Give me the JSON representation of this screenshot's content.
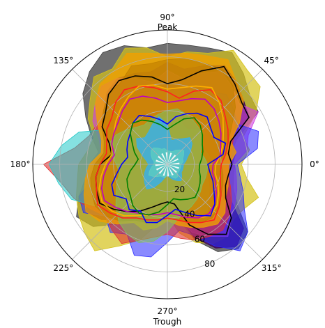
{
  "chart_data": {
    "type": "polar-area",
    "angle_unit": "degrees",
    "angle_ticks": [
      {
        "deg": 0,
        "label": "0°"
      },
      {
        "deg": 45,
        "label": "45°"
      },
      {
        "deg": 90,
        "label": "90°"
      },
      {
        "deg": 135,
        "label": "135°"
      },
      {
        "deg": 180,
        "label": "180°"
      },
      {
        "deg": 225,
        "label": "225°"
      },
      {
        "deg": 270,
        "label": "270°"
      },
      {
        "deg": 315,
        "label": "315°"
      }
    ],
    "angle_annotations": [
      {
        "deg": 90,
        "label": "Peak"
      },
      {
        "deg": 270,
        "label": "Trough"
      }
    ],
    "r_ticks": [
      20,
      40,
      60,
      80
    ],
    "r_tick_label_angle_deg": 292,
    "rlim": [
      0,
      100
    ],
    "grid": true,
    "angles_deg": [
      0,
      10,
      20,
      30,
      40,
      50,
      60,
      70,
      80,
      90,
      100,
      110,
      120,
      130,
      140,
      150,
      160,
      170,
      180,
      190,
      200,
      210,
      220,
      230,
      240,
      250,
      260,
      270,
      280,
      290,
      300,
      310,
      320,
      330,
      340,
      350
    ],
    "filled_series": [
      {
        "color": "#404040",
        "alpha": 0.75,
        "r": [
          50,
          48,
          55,
          78,
          80,
          88,
          96,
          92,
          90,
          90,
          88,
          94,
          96,
          90,
          82,
          70,
          60,
          52,
          58,
          62,
          70,
          78,
          72,
          58,
          44,
          40,
          36,
          38,
          40,
          60,
          75,
          82,
          78,
          60,
          52,
          50
        ]
      },
      {
        "color": "#d4c21a",
        "alpha": 0.7,
        "r": [
          55,
          62,
          60,
          76,
          90,
          92,
          98,
          88,
          85,
          80,
          88,
          92,
          82,
          85,
          75,
          68,
          58,
          60,
          66,
          68,
          72,
          76,
          80,
          84,
          70,
          60,
          46,
          38,
          52,
          62,
          68,
          70,
          64,
          66,
          72,
          60
        ]
      },
      {
        "color": "#3a0060",
        "alpha": 0.8,
        "r": [
          48,
          52,
          50,
          70,
          74,
          80,
          85,
          78,
          72,
          76,
          70,
          72,
          74,
          70,
          62,
          58,
          50,
          48,
          56,
          60,
          66,
          70,
          64,
          54,
          42,
          36,
          34,
          32,
          36,
          58,
          72,
          80,
          74,
          55,
          48,
          46
        ]
      },
      {
        "color": "#d040e0",
        "alpha": 0.6,
        "r": [
          50,
          60,
          64,
          78,
          70,
          75,
          80,
          72,
          65,
          70,
          62,
          68,
          74,
          76,
          70,
          64,
          54,
          50,
          58,
          62,
          64,
          60,
          56,
          50,
          44,
          40,
          38,
          36,
          40,
          54,
          62,
          70,
          62,
          58,
          55,
          52
        ]
      },
      {
        "color": "#2a2aff",
        "alpha": 0.55,
        "r": [
          52,
          68,
          72,
          60,
          64,
          68,
          62,
          56,
          50,
          40,
          46,
          52,
          58,
          54,
          50,
          48,
          44,
          40,
          50,
          56,
          70,
          72,
          60,
          66,
          60,
          72,
          70,
          58,
          50,
          56,
          70,
          84,
          78,
          66,
          60,
          55
        ]
      },
      {
        "color": "#e03030",
        "alpha": 0.6,
        "r": [
          45,
          48,
          52,
          58,
          60,
          62,
          60,
          55,
          50,
          48,
          50,
          54,
          58,
          62,
          56,
          60,
          62,
          70,
          92,
          80,
          74,
          66,
          60,
          64,
          68,
          60,
          55,
          52,
          56,
          60,
          62,
          64,
          60,
          55,
          50,
          46
        ]
      },
      {
        "color": "#20c8c8",
        "alpha": 0.55,
        "r": [
          30,
          32,
          30,
          28,
          36,
          34,
          30,
          32,
          40,
          36,
          34,
          30,
          40,
          44,
          46,
          52,
          70,
          80,
          88,
          82,
          76,
          62,
          50,
          40,
          36,
          30,
          26,
          22,
          30,
          40,
          44,
          46,
          40,
          36,
          32,
          30
        ]
      },
      {
        "color": "#f0a000",
        "alpha": 0.8,
        "r": [
          46,
          52,
          50,
          62,
          74,
          80,
          90,
          86,
          84,
          82,
          84,
          88,
          80,
          78,
          70,
          60,
          52,
          50,
          58,
          62,
          66,
          70,
          66,
          58,
          50,
          52,
          48,
          42,
          46,
          50,
          54,
          58,
          56,
          50,
          48,
          46
        ]
      },
      {
        "color": "#c08000",
        "alpha": 0.65,
        "r": [
          40,
          44,
          48,
          55,
          66,
          76,
          82,
          80,
          80,
          78,
          76,
          78,
          70,
          68,
          62,
          56,
          50,
          48,
          54,
          58,
          60,
          62,
          60,
          55,
          48,
          46,
          44,
          40,
          42,
          46,
          50,
          52,
          50,
          46,
          44,
          42
        ]
      },
      {
        "color": "#80c060",
        "alpha": 0.6,
        "r": [
          30,
          28,
          26,
          30,
          34,
          36,
          38,
          40,
          42,
          40,
          38,
          36,
          34,
          36,
          40,
          44,
          46,
          42,
          38,
          36,
          40,
          44,
          50,
          56,
          60,
          62,
          58,
          50,
          42,
          38,
          36,
          34,
          32,
          30,
          30,
          30
        ]
      },
      {
        "color": "#3ab0e8",
        "alpha": 0.85,
        "r": [
          12,
          14,
          16,
          20,
          24,
          26,
          22,
          20,
          18,
          30,
          36,
          32,
          28,
          26,
          30,
          26,
          20,
          16,
          14,
          16,
          18,
          20,
          22,
          24,
          20,
          14,
          10,
          8,
          10,
          12,
          14,
          16,
          14,
          12,
          12,
          12
        ]
      },
      {
        "color": "#60d0c0",
        "alpha": 0.7,
        "r": [
          10,
          12,
          12,
          14,
          16,
          14,
          12,
          10,
          10,
          10,
          12,
          12,
          14,
          16,
          16,
          14,
          12,
          10,
          10,
          12,
          14,
          16,
          14,
          12,
          10,
          10,
          10,
          8,
          8,
          10,
          12,
          12,
          10,
          10,
          10,
          10
        ]
      }
    ],
    "line_series": [
      {
        "color": "#000000",
        "r": [
          48,
          46,
          50,
          70,
          72,
          78,
          84,
          74,
          64,
          60,
          66,
          70,
          72,
          68,
          60,
          56,
          46,
          42,
          50,
          54,
          56,
          58,
          52,
          46,
          40,
          34,
          30,
          28,
          30,
          48,
          60,
          68,
          62,
          50,
          46,
          46
        ]
      },
      {
        "color": "#ff2020",
        "r": [
          40,
          44,
          48,
          52,
          56,
          62,
          64,
          58,
          50,
          54,
          58,
          62,
          64,
          60,
          54,
          52,
          48,
          46,
          50,
          54,
          56,
          60,
          56,
          52,
          46,
          44,
          42,
          40,
          42,
          46,
          50,
          54,
          50,
          46,
          42,
          40
        ]
      },
      {
        "color": "#ffb000",
        "r": [
          36,
          40,
          44,
          48,
          54,
          60,
          66,
          62,
          58,
          56,
          60,
          62,
          58,
          54,
          50,
          46,
          44,
          42,
          46,
          50,
          54,
          56,
          54,
          50,
          44,
          40,
          38,
          36,
          38,
          42,
          46,
          50,
          48,
          44,
          40,
          36
        ]
      },
      {
        "color": "#c000c0",
        "r": [
          34,
          40,
          42,
          46,
          50,
          54,
          56,
          52,
          48,
          46,
          50,
          54,
          56,
          52,
          48,
          46,
          44,
          40,
          44,
          48,
          52,
          54,
          50,
          46,
          42,
          40,
          38,
          36,
          38,
          42,
          46,
          48,
          46,
          42,
          38,
          34
        ]
      },
      {
        "color": "#0000ff",
        "r": [
          30,
          42,
          46,
          40,
          42,
          46,
          44,
          40,
          36,
          30,
          34,
          38,
          42,
          40,
          36,
          34,
          32,
          30,
          34,
          38,
          44,
          46,
          40,
          44,
          40,
          46,
          44,
          38,
          34,
          38,
          44,
          50,
          46,
          40,
          36,
          32
        ]
      },
      {
        "color": "#008000",
        "r": [
          24,
          26,
          28,
          30,
          34,
          38,
          40,
          36,
          30,
          26,
          30,
          34,
          38,
          40,
          36,
          30,
          26,
          22,
          24,
          28,
          32,
          34,
          36,
          40,
          42,
          40,
          36,
          30,
          26,
          28,
          30,
          32,
          30,
          28,
          26,
          24
        ]
      }
    ]
  }
}
